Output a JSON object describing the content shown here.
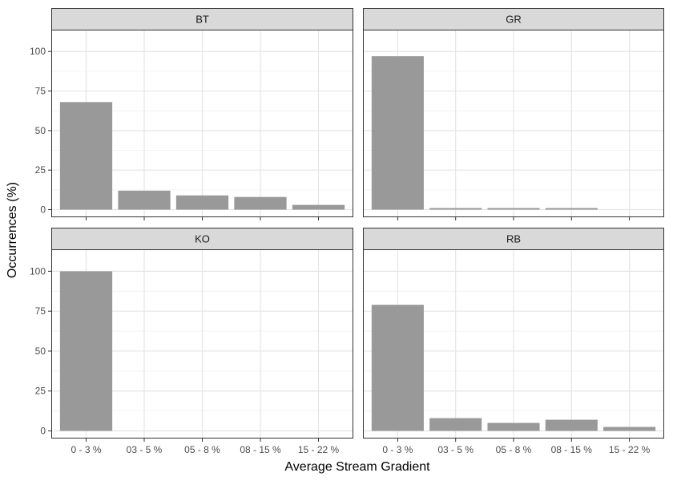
{
  "chart_data": {
    "type": "bar",
    "facet_layout": "2x2",
    "xlabel": "Average Stream Gradient",
    "ylabel": "Occurrences (%)",
    "ylim": [
      0,
      110
    ],
    "yticks": [
      0,
      25,
      50,
      75,
      100
    ],
    "categories": [
      "0 - 3 %",
      "03 - 5 %",
      "05 - 8 %",
      "08 - 15 %",
      "15 - 22 %"
    ],
    "grid": true,
    "bar_color": "#999999",
    "panels": [
      {
        "name": "BT",
        "values": [
          68,
          12,
          9,
          8,
          3
        ]
      },
      {
        "name": "GR",
        "values": [
          97,
          1,
          1,
          1,
          0
        ]
      },
      {
        "name": "KO",
        "values": [
          100,
          0,
          0,
          0,
          0
        ]
      },
      {
        "name": "RB",
        "values": [
          79,
          8,
          5,
          7,
          2.5
        ]
      }
    ]
  }
}
